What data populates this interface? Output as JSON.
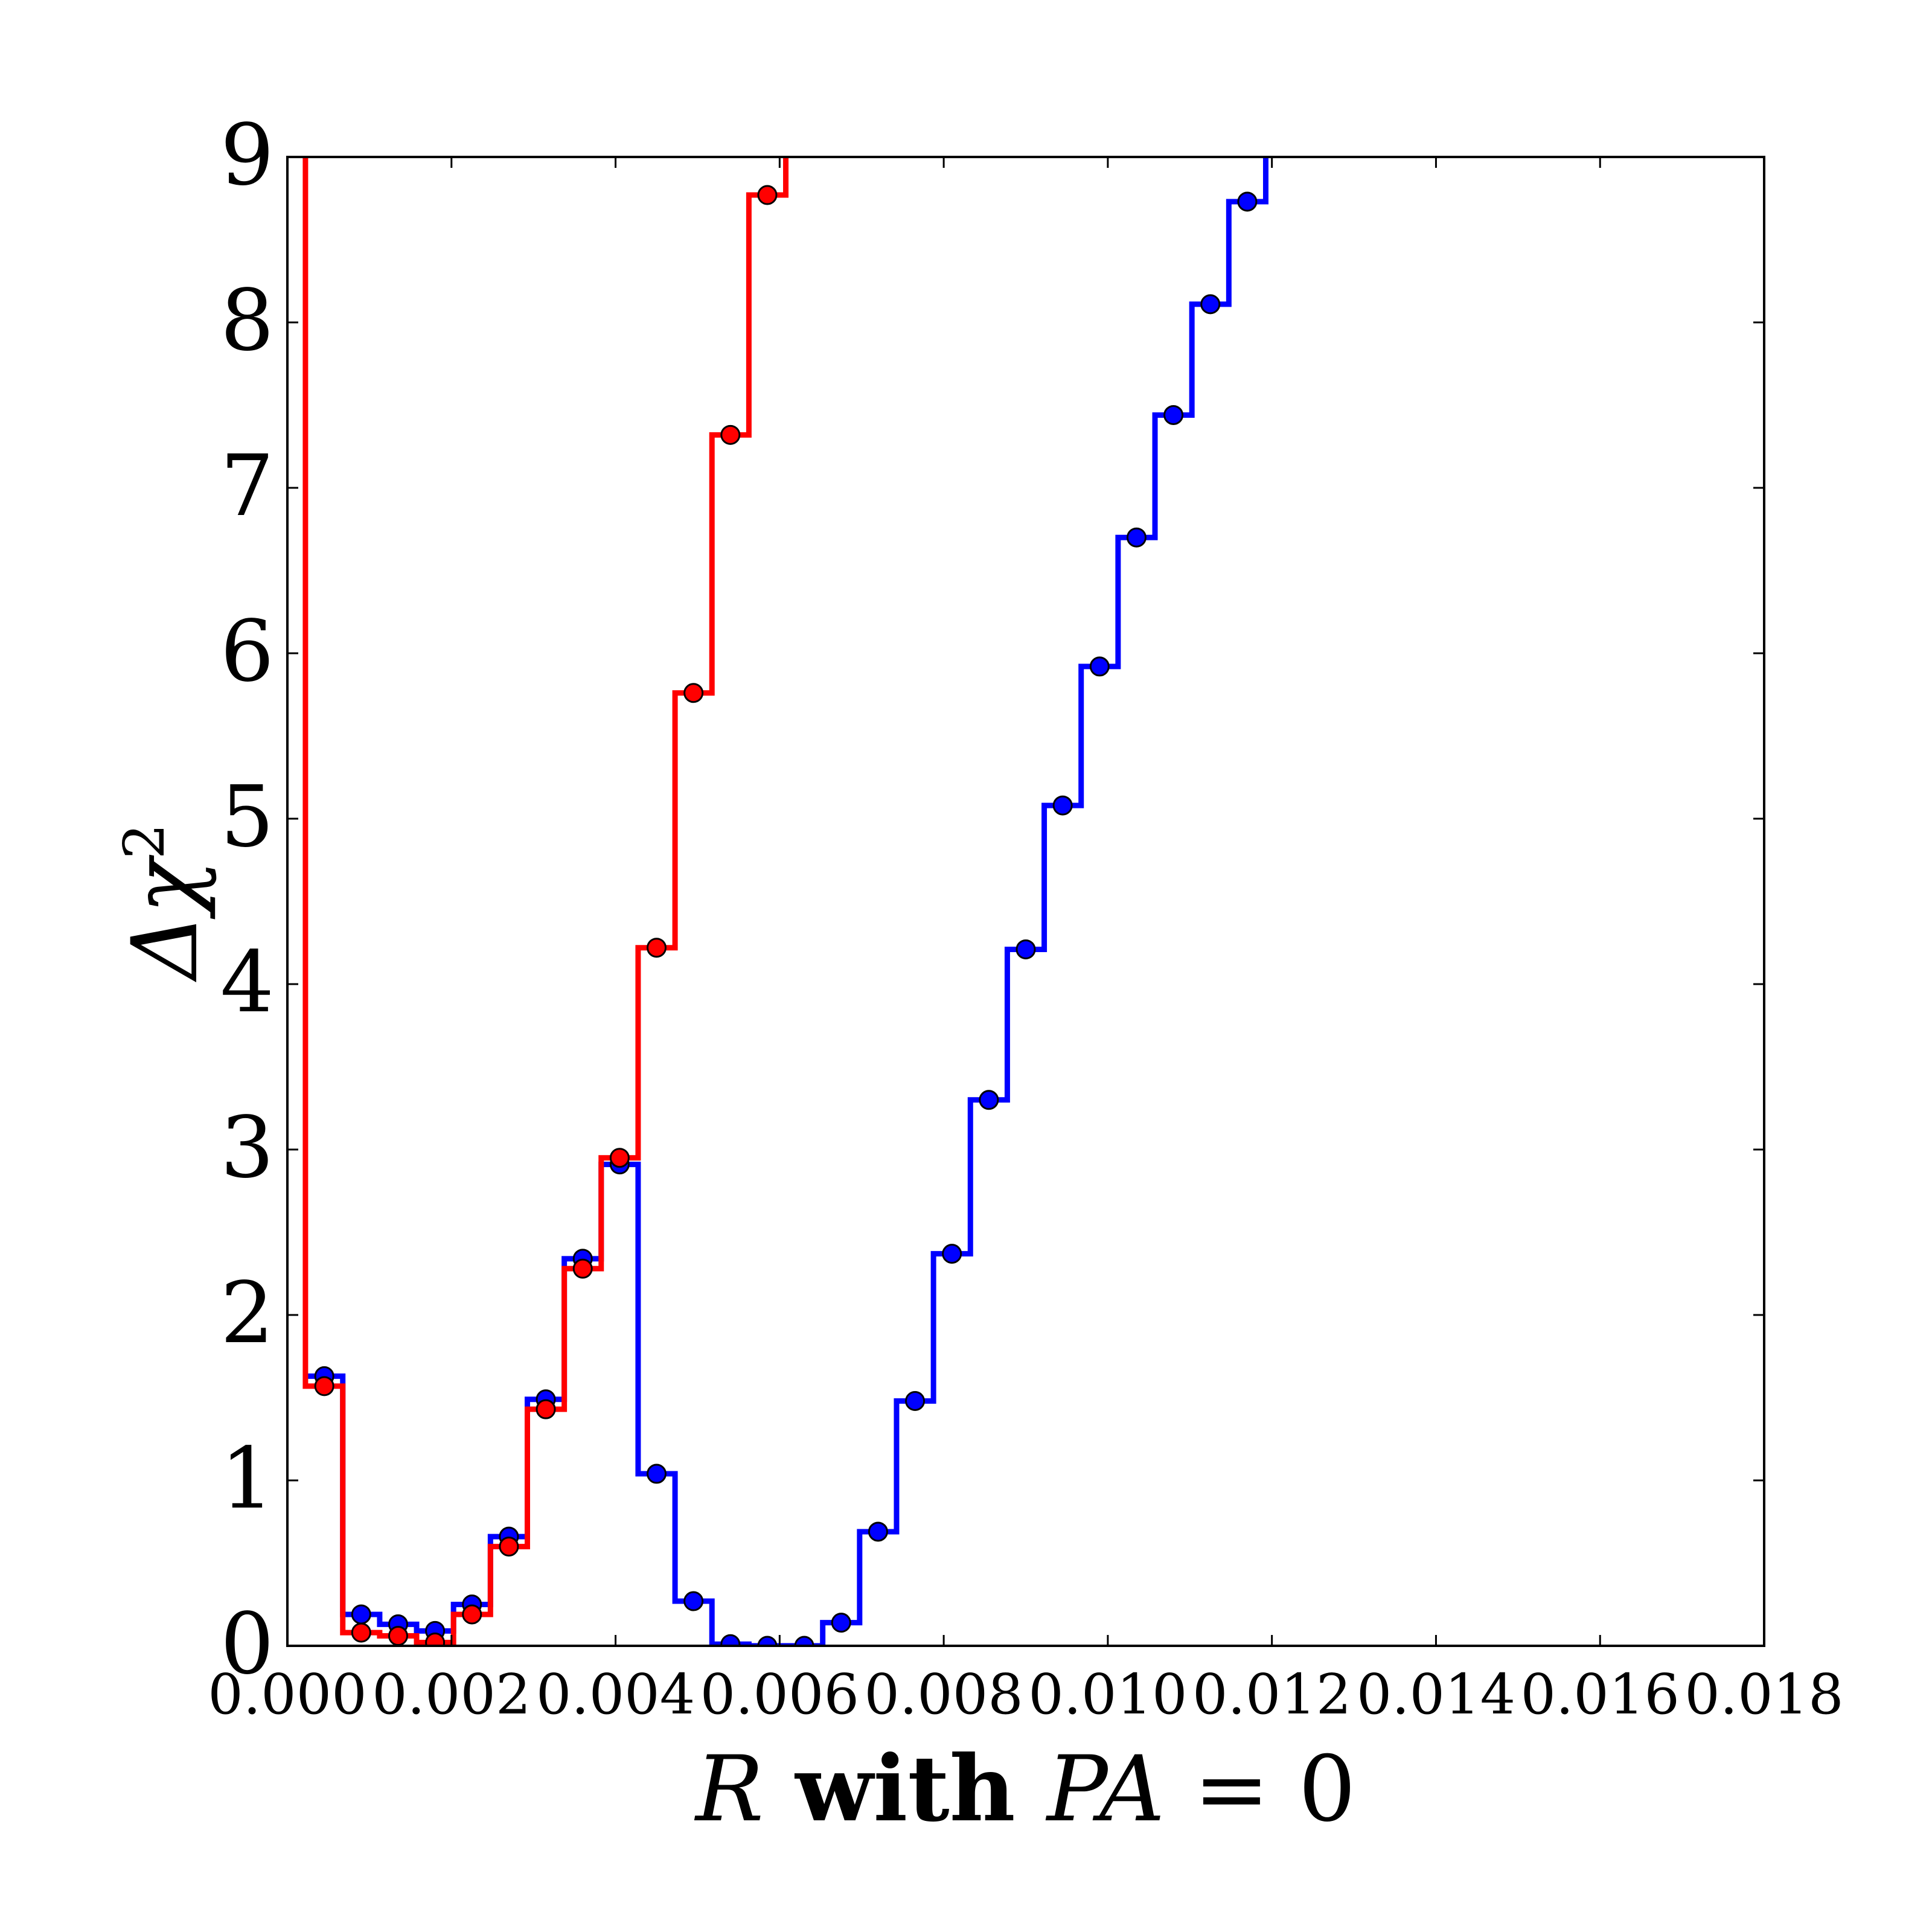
{
  "chart_data": {
    "type": "line",
    "title": "",
    "xlabel_parts": [
      {
        "text": "R",
        "style": "italic"
      },
      {
        "text": " with ",
        "style": "bold"
      },
      {
        "text": "PA",
        "style": "italic"
      },
      {
        "text": " = 0",
        "style": "normal"
      }
    ],
    "ylabel_parts": [
      {
        "text": "Δχ",
        "style": "italic"
      },
      {
        "text": "2",
        "style": "sup"
      }
    ],
    "xlim": [
      0.0,
      0.018
    ],
    "ylim": [
      0,
      9
    ],
    "xticks": [
      "0.000",
      "0.002",
      "0.004",
      "0.006",
      "0.008",
      "0.010",
      "0.012",
      "0.014",
      "0.016",
      "0.018"
    ],
    "yticks": [
      "0",
      "1",
      "2",
      "3",
      "4",
      "5",
      "6",
      "7",
      "8",
      "9"
    ],
    "grid": false,
    "legend": "none",
    "series": [
      {
        "color": "#0000ff",
        "draw": "steps-mid with markers",
        "points": [
          [
            0.00045,
            1.63
          ],
          [
            0.0009,
            0.19
          ],
          [
            0.00135,
            0.13
          ],
          [
            0.0018,
            0.09
          ],
          [
            0.00225,
            0.25
          ],
          [
            0.0027,
            0.66
          ],
          [
            0.00315,
            1.49
          ],
          [
            0.0036,
            2.34
          ],
          [
            0.00405,
            2.91
          ],
          [
            0.0045,
            1.04
          ],
          [
            0.00495,
            0.27
          ],
          [
            0.0054,
            0.01
          ],
          [
            0.00585,
            0.0
          ],
          [
            0.0063,
            0.0
          ],
          [
            0.00675,
            0.14
          ],
          [
            0.0072,
            0.69
          ],
          [
            0.00765,
            1.48
          ],
          [
            0.0081,
            2.37
          ],
          [
            0.00855,
            3.3
          ],
          [
            0.009,
            4.21
          ],
          [
            0.00945,
            5.08
          ],
          [
            0.0099,
            5.92
          ],
          [
            0.01035,
            6.7
          ],
          [
            0.0108,
            7.44
          ],
          [
            0.01125,
            8.11
          ],
          [
            0.0117,
            8.73
          ],
          [
            0.01215,
            9.3
          ]
        ],
        "left_edge": [
          0.00022,
          1.63
        ]
      },
      {
        "color": "#ff0000",
        "draw": "steps-mid with markers",
        "points": [
          [
            0.00045,
            1.57
          ],
          [
            0.0009,
            0.08
          ],
          [
            0.00135,
            0.06
          ],
          [
            0.0018,
            0.02
          ],
          [
            0.00225,
            0.19
          ],
          [
            0.0027,
            0.6
          ],
          [
            0.00315,
            1.43
          ],
          [
            0.0036,
            2.28
          ],
          [
            0.00405,
            2.95
          ],
          [
            0.0045,
            4.22
          ],
          [
            0.00495,
            5.76
          ],
          [
            0.0054,
            7.32
          ],
          [
            0.00585,
            8.77
          ],
          [
            0.0063,
            9.5
          ]
        ],
        "left_edge": [
          0.00022,
          9.5
        ]
      }
    ]
  }
}
